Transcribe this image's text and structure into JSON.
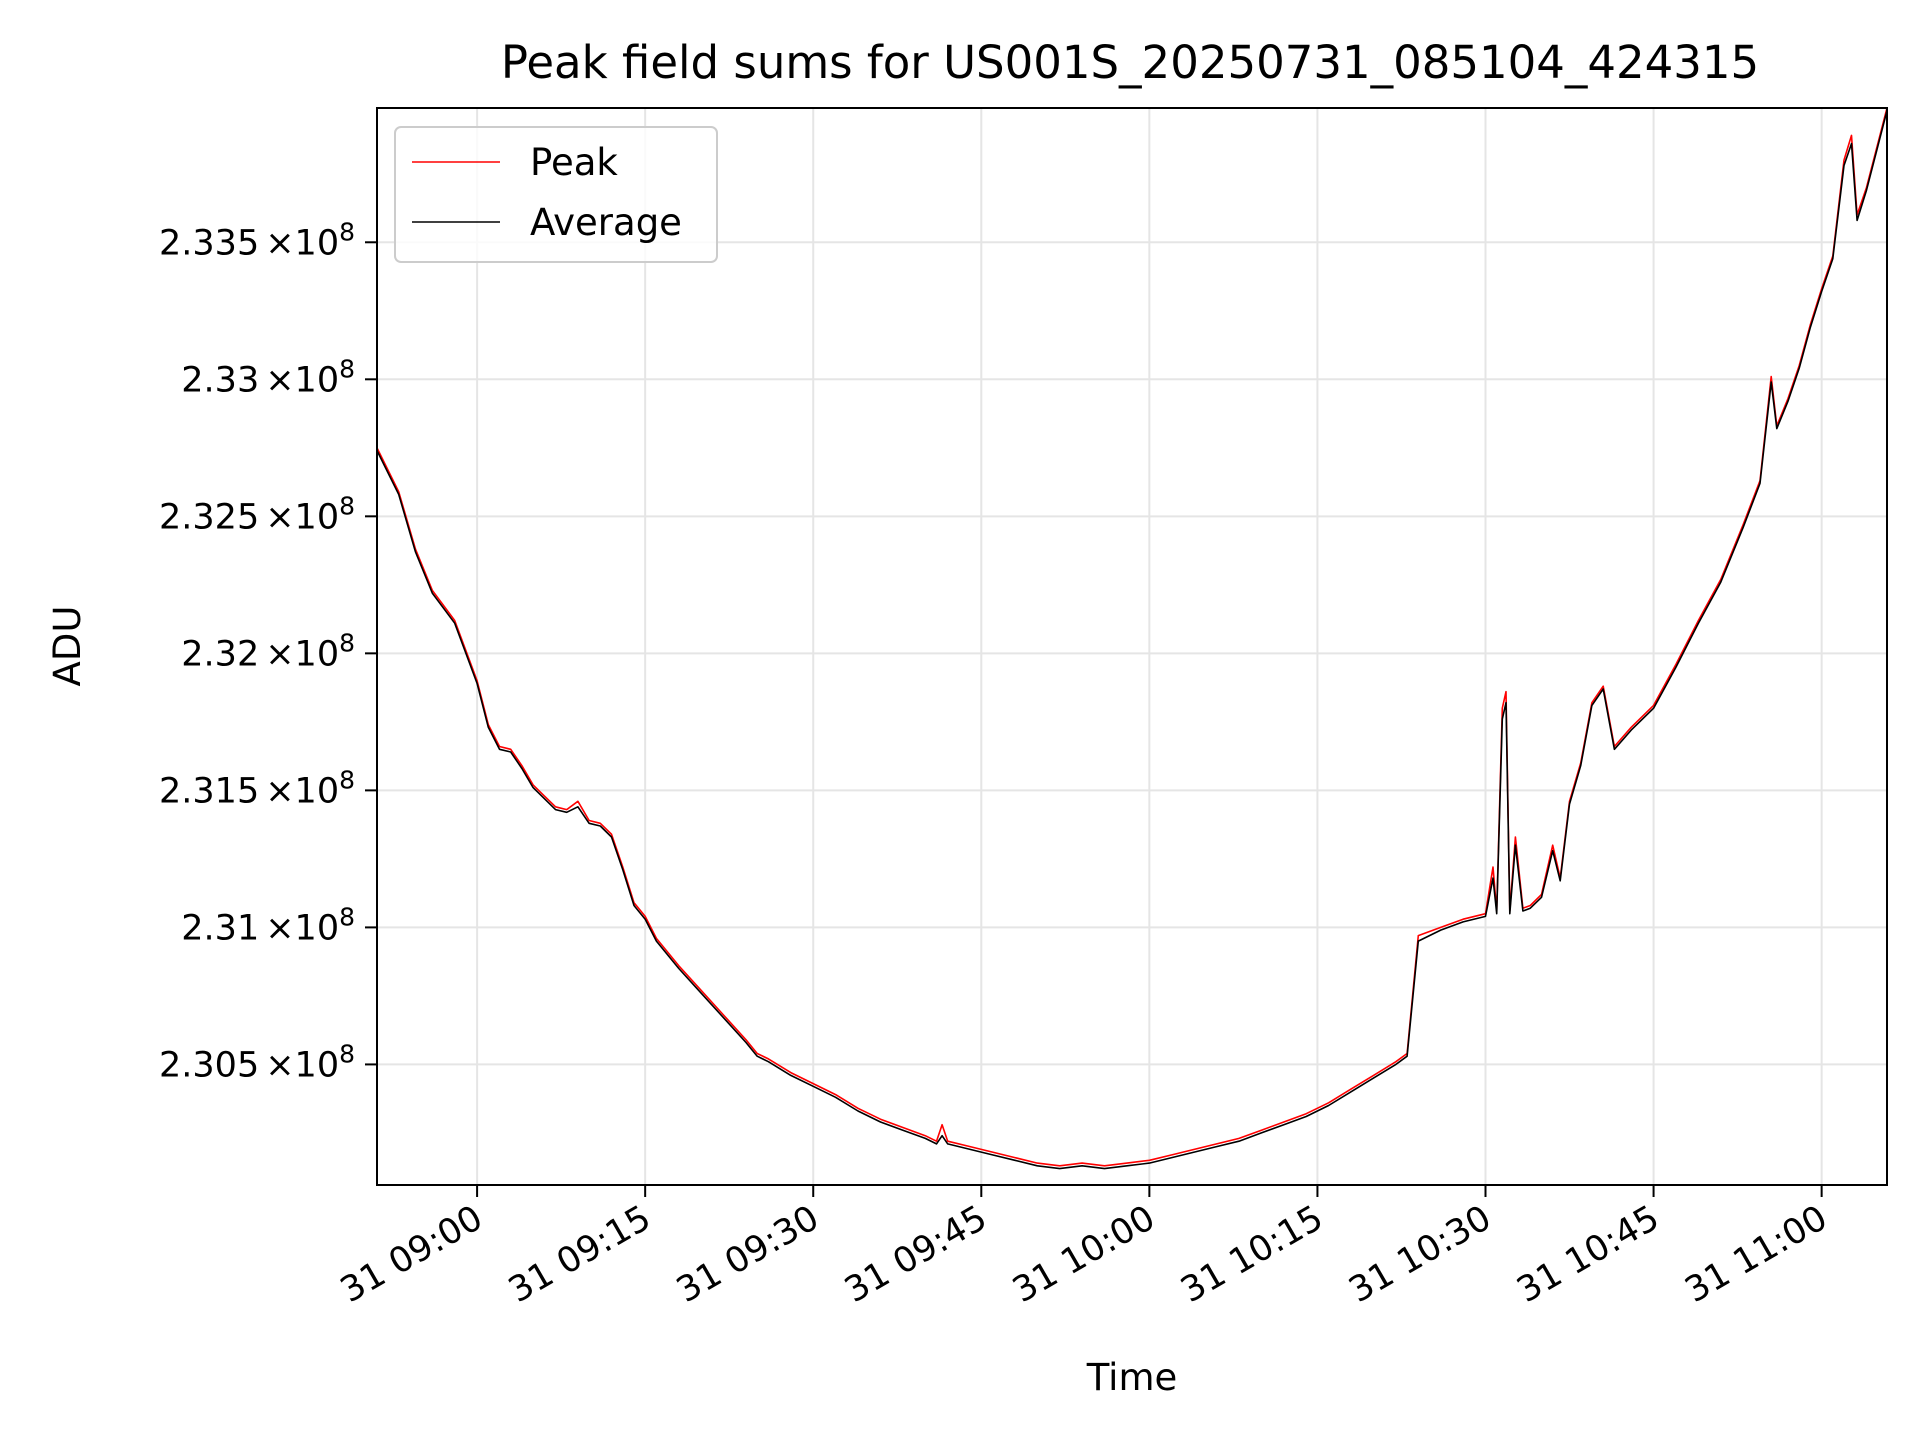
{
  "chart_data": {
    "type": "line",
    "title": "Peak field sums for US001S_20250731_085104_424315",
    "xlabel": "Time",
    "ylabel": "ADU",
    "x_range": [
      "2025-07-31 08:51:04",
      "2025-07-31 11:05:50"
    ],
    "ylim": [
      230060000,
      233990000
    ],
    "grid": true,
    "legend_position": "upper-left",
    "x_ticks": [
      {
        "value": "2025-07-31 09:00",
        "label": "31 09:00"
      },
      {
        "value": "2025-07-31 09:15",
        "label": "31 09:15"
      },
      {
        "value": "2025-07-31 09:30",
        "label": "31 09:30"
      },
      {
        "value": "2025-07-31 09:45",
        "label": "31 09:45"
      },
      {
        "value": "2025-07-31 10:00",
        "label": "31 10:00"
      },
      {
        "value": "2025-07-31 10:15",
        "label": "31 10:15"
      },
      {
        "value": "2025-07-31 10:30",
        "label": "31 10:30"
      },
      {
        "value": "2025-07-31 10:45",
        "label": "31 10:45"
      },
      {
        "value": "2025-07-31 11:00",
        "label": "31 11:00"
      }
    ],
    "y_ticks": [
      {
        "value": 230500000,
        "mantissa": "2.305",
        "times": "×",
        "base": "10",
        "exponent": "8"
      },
      {
        "value": 231000000,
        "mantissa": "2.31",
        "times": "×",
        "base": "10",
        "exponent": "8"
      },
      {
        "value": 231500000,
        "mantissa": "2.315",
        "times": "×",
        "base": "10",
        "exponent": "8"
      },
      {
        "value": 232000000,
        "mantissa": "2.32",
        "times": "×",
        "base": "10",
        "exponent": "8"
      },
      {
        "value": 232500000,
        "mantissa": "2.325",
        "times": "×",
        "base": "10",
        "exponent": "8"
      },
      {
        "value": 233000000,
        "mantissa": "2.33",
        "times": "×",
        "base": "10",
        "exponent": "8"
      },
      {
        "value": 233500000,
        "mantissa": "2.335",
        "times": "×",
        "base": "10",
        "exponent": "8"
      }
    ],
    "series": [
      {
        "name": "Peak",
        "color": "#ff0000",
        "points": [
          [
            "2025-07-31 08:51:04",
            232750000
          ],
          [
            "2025-07-31 08:53:00",
            232590000
          ],
          [
            "2025-07-31 08:54:30",
            232380000
          ],
          [
            "2025-07-31 08:56:00",
            232230000
          ],
          [
            "2025-07-31 08:58:00",
            232120000
          ],
          [
            "2025-07-31 09:00:00",
            231900000
          ],
          [
            "2025-07-31 09:01:00",
            231740000
          ],
          [
            "2025-07-31 09:02:00",
            231660000
          ],
          [
            "2025-07-31 09:03:00",
            231650000
          ],
          [
            "2025-07-31 09:04:00",
            231590000
          ],
          [
            "2025-07-31 09:05:00",
            231520000
          ],
          [
            "2025-07-31 09:06:00",
            231480000
          ],
          [
            "2025-07-31 09:07:00",
            231440000
          ],
          [
            "2025-07-31 09:08:00",
            231430000
          ],
          [
            "2025-07-31 09:09:00",
            231460000
          ],
          [
            "2025-07-31 09:10:00",
            231390000
          ],
          [
            "2025-07-31 09:11:00",
            231380000
          ],
          [
            "2025-07-31 09:12:00",
            231340000
          ],
          [
            "2025-07-31 09:13:00",
            231220000
          ],
          [
            "2025-07-31 09:14:00",
            231090000
          ],
          [
            "2025-07-31 09:15:00",
            231040000
          ],
          [
            "2025-07-31 09:16:00",
            230960000
          ],
          [
            "2025-07-31 09:18:00",
            230860000
          ],
          [
            "2025-07-31 09:20:00",
            230770000
          ],
          [
            "2025-07-31 09:22:00",
            230680000
          ],
          [
            "2025-07-31 09:24:00",
            230590000
          ],
          [
            "2025-07-31 09:25:00",
            230540000
          ],
          [
            "2025-07-31 09:26:00",
            230520000
          ],
          [
            "2025-07-31 09:28:00",
            230470000
          ],
          [
            "2025-07-31 09:30:00",
            230430000
          ],
          [
            "2025-07-31 09:32:00",
            230390000
          ],
          [
            "2025-07-31 09:34:00",
            230340000
          ],
          [
            "2025-07-31 09:36:00",
            230300000
          ],
          [
            "2025-07-31 09:38:00",
            230270000
          ],
          [
            "2025-07-31 09:40:00",
            230240000
          ],
          [
            "2025-07-31 09:41:00",
            230220000
          ],
          [
            "2025-07-31 09:41:30",
            230280000
          ],
          [
            "2025-07-31 09:42:00",
            230220000
          ],
          [
            "2025-07-31 09:44:00",
            230200000
          ],
          [
            "2025-07-31 09:46:00",
            230180000
          ],
          [
            "2025-07-31 09:48:00",
            230160000
          ],
          [
            "2025-07-31 09:50:00",
            230140000
          ],
          [
            "2025-07-31 09:52:00",
            230130000
          ],
          [
            "2025-07-31 09:54:00",
            230140000
          ],
          [
            "2025-07-31 09:56:00",
            230130000
          ],
          [
            "2025-07-31 09:58:00",
            230140000
          ],
          [
            "2025-07-31 10:00:00",
            230150000
          ],
          [
            "2025-07-31 10:02:00",
            230170000
          ],
          [
            "2025-07-31 10:04:00",
            230190000
          ],
          [
            "2025-07-31 10:06:00",
            230210000
          ],
          [
            "2025-07-31 10:08:00",
            230230000
          ],
          [
            "2025-07-31 10:10:00",
            230260000
          ],
          [
            "2025-07-31 10:12:00",
            230290000
          ],
          [
            "2025-07-31 10:14:00",
            230320000
          ],
          [
            "2025-07-31 10:16:00",
            230360000
          ],
          [
            "2025-07-31 10:18:00",
            230410000
          ],
          [
            "2025-07-31 10:20:00",
            230460000
          ],
          [
            "2025-07-31 10:22:00",
            230510000
          ],
          [
            "2025-07-31 10:23:00",
            230540000
          ],
          [
            "2025-07-31 10:24:00",
            230970000
          ],
          [
            "2025-07-31 10:26:00",
            231000000
          ],
          [
            "2025-07-31 10:28:00",
            231030000
          ],
          [
            "2025-07-31 10:30:00",
            231050000
          ],
          [
            "2025-07-31 10:30:40",
            231220000
          ],
          [
            "2025-07-31 10:31:00",
            231060000
          ],
          [
            "2025-07-31 10:31:30",
            231800000
          ],
          [
            "2025-07-31 10:31:50",
            231860000
          ],
          [
            "2025-07-31 10:32:10",
            231060000
          ],
          [
            "2025-07-31 10:32:40",
            231330000
          ],
          [
            "2025-07-31 10:33:20",
            231070000
          ],
          [
            "2025-07-31 10:34:00",
            231080000
          ],
          [
            "2025-07-31 10:35:00",
            231120000
          ],
          [
            "2025-07-31 10:36:00",
            231300000
          ],
          [
            "2025-07-31 10:36:40",
            231180000
          ],
          [
            "2025-07-31 10:37:30",
            231460000
          ],
          [
            "2025-07-31 10:38:30",
            231600000
          ],
          [
            "2025-07-31 10:39:30",
            231820000
          ],
          [
            "2025-07-31 10:40:30",
            231880000
          ],
          [
            "2025-07-31 10:41:30",
            231660000
          ],
          [
            "2025-07-31 10:43:00",
            231730000
          ],
          [
            "2025-07-31 10:45:00",
            231810000
          ],
          [
            "2025-07-31 10:47:00",
            231960000
          ],
          [
            "2025-07-31 10:49:00",
            232120000
          ],
          [
            "2025-07-31 10:51:00",
            232270000
          ],
          [
            "2025-07-31 10:53:00",
            232470000
          ],
          [
            "2025-07-31 10:54:30",
            232630000
          ],
          [
            "2025-07-31 10:55:30",
            233010000
          ],
          [
            "2025-07-31 10:56:00",
            232830000
          ],
          [
            "2025-07-31 10:57:00",
            232930000
          ],
          [
            "2025-07-31 10:58:00",
            233050000
          ],
          [
            "2025-07-31 10:59:00",
            233200000
          ],
          [
            "2025-07-31 11:00:00",
            233330000
          ],
          [
            "2025-07-31 11:01:00",
            233450000
          ],
          [
            "2025-07-31 11:02:00",
            233800000
          ],
          [
            "2025-07-31 11:02:40",
            233890000
          ],
          [
            "2025-07-31 11:03:10",
            233600000
          ],
          [
            "2025-07-31 11:04:00",
            233700000
          ],
          [
            "2025-07-31 11:05:50",
            233990000
          ]
        ]
      },
      {
        "name": "Average",
        "color": "#000000",
        "points": [
          [
            "2025-07-31 08:51:04",
            232740000
          ],
          [
            "2025-07-31 08:53:00",
            232580000
          ],
          [
            "2025-07-31 08:54:30",
            232370000
          ],
          [
            "2025-07-31 08:56:00",
            232220000
          ],
          [
            "2025-07-31 08:58:00",
            232110000
          ],
          [
            "2025-07-31 09:00:00",
            231890000
          ],
          [
            "2025-07-31 09:01:00",
            231730000
          ],
          [
            "2025-07-31 09:02:00",
            231650000
          ],
          [
            "2025-07-31 09:03:00",
            231640000
          ],
          [
            "2025-07-31 09:04:00",
            231580000
          ],
          [
            "2025-07-31 09:05:00",
            231510000
          ],
          [
            "2025-07-31 09:06:00",
            231470000
          ],
          [
            "2025-07-31 09:07:00",
            231430000
          ],
          [
            "2025-07-31 09:08:00",
            231420000
          ],
          [
            "2025-07-31 09:09:00",
            231440000
          ],
          [
            "2025-07-31 09:10:00",
            231380000
          ],
          [
            "2025-07-31 09:11:00",
            231370000
          ],
          [
            "2025-07-31 09:12:00",
            231330000
          ],
          [
            "2025-07-31 09:13:00",
            231210000
          ],
          [
            "2025-07-31 09:14:00",
            231080000
          ],
          [
            "2025-07-31 09:15:00",
            231030000
          ],
          [
            "2025-07-31 09:16:00",
            230950000
          ],
          [
            "2025-07-31 09:18:00",
            230850000
          ],
          [
            "2025-07-31 09:20:00",
            230760000
          ],
          [
            "2025-07-31 09:22:00",
            230670000
          ],
          [
            "2025-07-31 09:24:00",
            230580000
          ],
          [
            "2025-07-31 09:25:00",
            230530000
          ],
          [
            "2025-07-31 09:26:00",
            230510000
          ],
          [
            "2025-07-31 09:28:00",
            230460000
          ],
          [
            "2025-07-31 09:30:00",
            230420000
          ],
          [
            "2025-07-31 09:32:00",
            230380000
          ],
          [
            "2025-07-31 09:34:00",
            230330000
          ],
          [
            "2025-07-31 09:36:00",
            230290000
          ],
          [
            "2025-07-31 09:38:00",
            230260000
          ],
          [
            "2025-07-31 09:40:00",
            230230000
          ],
          [
            "2025-07-31 09:41:00",
            230210000
          ],
          [
            "2025-07-31 09:41:30",
            230240000
          ],
          [
            "2025-07-31 09:42:00",
            230210000
          ],
          [
            "2025-07-31 09:44:00",
            230190000
          ],
          [
            "2025-07-31 09:46:00",
            230170000
          ],
          [
            "2025-07-31 09:48:00",
            230150000
          ],
          [
            "2025-07-31 09:50:00",
            230130000
          ],
          [
            "2025-07-31 09:52:00",
            230120000
          ],
          [
            "2025-07-31 09:54:00",
            230130000
          ],
          [
            "2025-07-31 09:56:00",
            230120000
          ],
          [
            "2025-07-31 09:58:00",
            230130000
          ],
          [
            "2025-07-31 10:00:00",
            230140000
          ],
          [
            "2025-07-31 10:02:00",
            230160000
          ],
          [
            "2025-07-31 10:04:00",
            230180000
          ],
          [
            "2025-07-31 10:06:00",
            230200000
          ],
          [
            "2025-07-31 10:08:00",
            230220000
          ],
          [
            "2025-07-31 10:10:00",
            230250000
          ],
          [
            "2025-07-31 10:12:00",
            230280000
          ],
          [
            "2025-07-31 10:14:00",
            230310000
          ],
          [
            "2025-07-31 10:16:00",
            230350000
          ],
          [
            "2025-07-31 10:18:00",
            230400000
          ],
          [
            "2025-07-31 10:20:00",
            230450000
          ],
          [
            "2025-07-31 10:22:00",
            230500000
          ],
          [
            "2025-07-31 10:23:00",
            230530000
          ],
          [
            "2025-07-31 10:24:00",
            230950000
          ],
          [
            "2025-07-31 10:26:00",
            230990000
          ],
          [
            "2025-07-31 10:28:00",
            231020000
          ],
          [
            "2025-07-31 10:30:00",
            231040000
          ],
          [
            "2025-07-31 10:30:40",
            231180000
          ],
          [
            "2025-07-31 10:31:00",
            231050000
          ],
          [
            "2025-07-31 10:31:30",
            231760000
          ],
          [
            "2025-07-31 10:31:50",
            231820000
          ],
          [
            "2025-07-31 10:32:10",
            231050000
          ],
          [
            "2025-07-31 10:32:40",
            231300000
          ],
          [
            "2025-07-31 10:33:20",
            231060000
          ],
          [
            "2025-07-31 10:34:00",
            231070000
          ],
          [
            "2025-07-31 10:35:00",
            231110000
          ],
          [
            "2025-07-31 10:36:00",
            231280000
          ],
          [
            "2025-07-31 10:36:40",
            231170000
          ],
          [
            "2025-07-31 10:37:30",
            231450000
          ],
          [
            "2025-07-31 10:38:30",
            231590000
          ],
          [
            "2025-07-31 10:39:30",
            231810000
          ],
          [
            "2025-07-31 10:40:30",
            231870000
          ],
          [
            "2025-07-31 10:41:30",
            231650000
          ],
          [
            "2025-07-31 10:43:00",
            231720000
          ],
          [
            "2025-07-31 10:45:00",
            231800000
          ],
          [
            "2025-07-31 10:47:00",
            231950000
          ],
          [
            "2025-07-31 10:49:00",
            232110000
          ],
          [
            "2025-07-31 10:51:00",
            232260000
          ],
          [
            "2025-07-31 10:53:00",
            232460000
          ],
          [
            "2025-07-31 10:54:30",
            232620000
          ],
          [
            "2025-07-31 10:55:30",
            232990000
          ],
          [
            "2025-07-31 10:56:00",
            232820000
          ],
          [
            "2025-07-31 10:57:00",
            232920000
          ],
          [
            "2025-07-31 10:58:00",
            233040000
          ],
          [
            "2025-07-31 10:59:00",
            233190000
          ],
          [
            "2025-07-31 11:00:00",
            233320000
          ],
          [
            "2025-07-31 11:01:00",
            233440000
          ],
          [
            "2025-07-31 11:02:00",
            233780000
          ],
          [
            "2025-07-31 11:02:40",
            233860000
          ],
          [
            "2025-07-31 11:03:10",
            233580000
          ],
          [
            "2025-07-31 11:04:00",
            233690000
          ],
          [
            "2025-07-31 11:05:50",
            233980000
          ]
        ]
      }
    ]
  }
}
